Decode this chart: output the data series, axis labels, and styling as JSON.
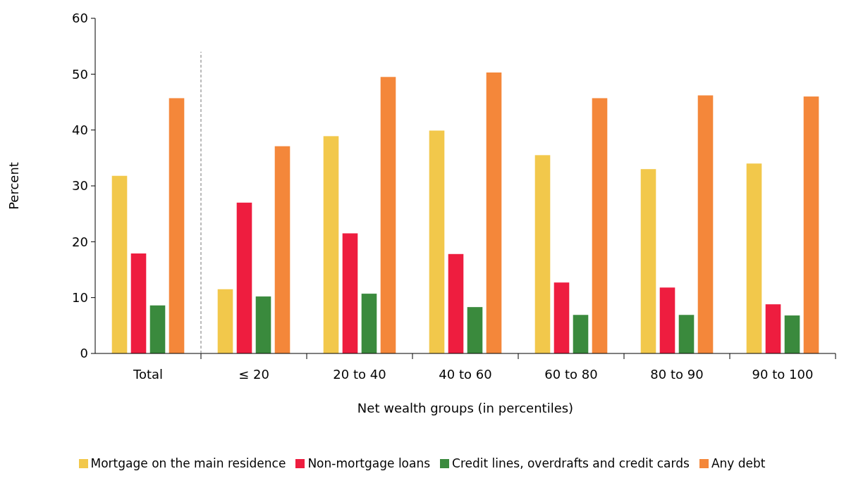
{
  "chart_data": {
    "type": "bar",
    "xlabel": "Net wealth groups (in percentiles)",
    "ylabel": "Percent",
    "categories": [
      "Total",
      "≤ 20",
      "20 to 40",
      "40 to 60",
      "60 to 80",
      "80 to 90",
      "90 to 100"
    ],
    "series": [
      {
        "name": "Mortgage on the main residence",
        "color": "#f2c84b",
        "values": [
          31.8,
          11.5,
          38.9,
          39.9,
          35.5,
          33.0,
          34.0
        ]
      },
      {
        "name": "Non-mortgage loans",
        "color": "#ee1d3f",
        "values": [
          17.9,
          27.0,
          21.5,
          17.8,
          12.7,
          11.8,
          8.8
        ]
      },
      {
        "name": "Credit lines, overdrafts and credit cards",
        "color": "#3a8a3d",
        "values": [
          8.6,
          10.2,
          10.7,
          8.3,
          6.9,
          6.9,
          6.8
        ]
      },
      {
        "name": "Any debt",
        "color": "#f4873a",
        "values": [
          45.7,
          37.1,
          49.5,
          50.3,
          45.7,
          46.2,
          46.0
        ]
      }
    ],
    "ylim": [
      0,
      60
    ],
    "yticks": [
      0,
      10,
      20,
      30,
      40,
      50,
      60
    ],
    "grid": false,
    "legend": "bottom"
  }
}
